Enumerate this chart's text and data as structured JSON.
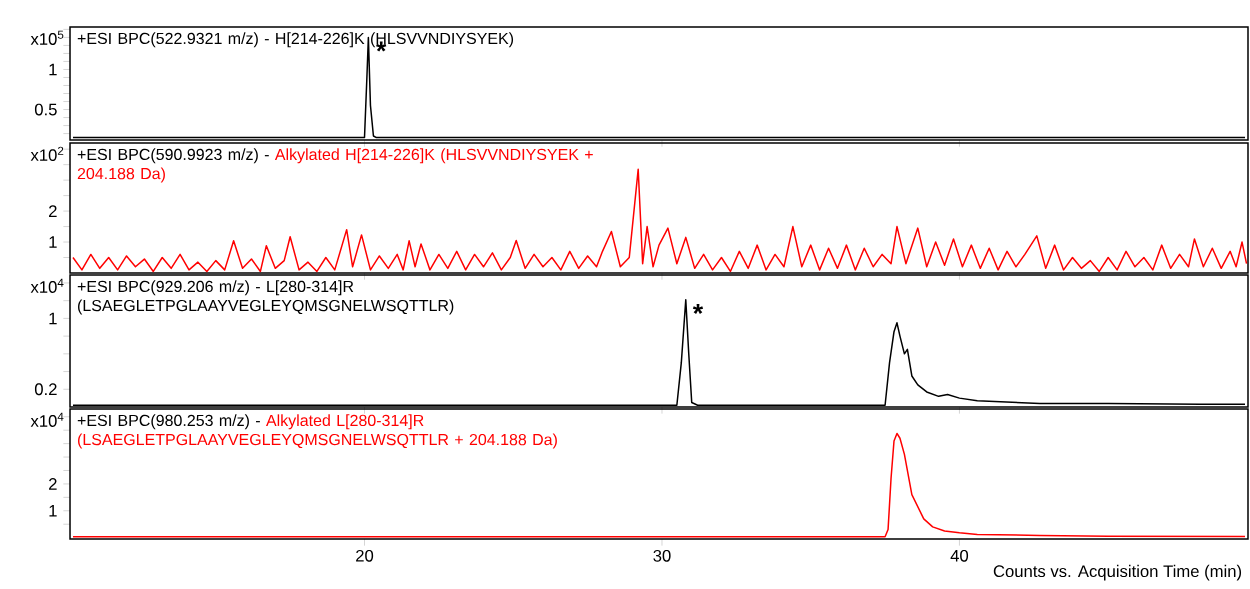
{
  "chart_data": [
    {
      "type": "line",
      "title": "+ESI BPC(522.9321 m/z) -",
      "subtitle": "H[214-226]K (HLSVVNDIYSYEK)",
      "ylabel": "x10$^{5}$",
      "xlim": [
        10.1,
        49.7
      ],
      "xticks": [
        20,
        30,
        40
      ],
      "ylim": [
        0.12,
        1.53
      ],
      "yticks": [
        {
          "value": 0.2,
          "label": null
        },
        {
          "value": 0.3,
          "label": null
        },
        {
          "value": 0.4,
          "label": null
        },
        0.5,
        {
          "value": 0.6,
          "label": null
        },
        {
          "value": 0.7,
          "label": null
        },
        {
          "value": 0.8,
          "label": null
        },
        {
          "value": 0.9,
          "label": null
        },
        1,
        {
          "value": 1.1,
          "label": null
        },
        {
          "value": 1.2,
          "label": null
        },
        {
          "value": 1.3,
          "label": null
        },
        {
          "value": 1.4,
          "label": null
        },
        {
          "value": 1.5,
          "label": null
        }
      ],
      "tick_labels": "y",
      "annotations": [
        {
          "text": "*",
          "x": 20.15,
          "y": 1.4
        }
      ],
      "series": [
        {
          "color": "#000000",
          "x": [
            10.2,
            20.0,
            20.08,
            20.13,
            20.2,
            20.3,
            20.4,
            49.6
          ],
          "values": [
            0.15,
            0.15,
            0.9,
            1.4,
            0.55,
            0.17,
            0.15,
            0.15
          ]
        }
      ]
    },
    {
      "type": "line",
      "title": "+ESI BPC(590.9923 m/z) -",
      "subtitle": "Alkylated H[214-226]K (HLSVVNDIYSYEK + 204.188 Da)",
      "ylabel": "x10$^{2}$",
      "xlim": [
        10.1,
        49.7
      ],
      "xticks": [
        20,
        30,
        40
      ],
      "ylim": [
        0,
        4.2
      ],
      "yticks": [
        {
          "value": 0.5,
          "label": null
        },
        1,
        {
          "value": 1.5,
          "label": null
        },
        2,
        {
          "value": 2.5,
          "label": null
        },
        {
          "value": 3,
          "label": null
        },
        {
          "value": 3.5,
          "label": null
        },
        {
          "value": 4,
          "label": null
        }
      ],
      "tick_labels": "y",
      "series": [
        {
          "color": "#ff0000",
          "x": [
            10.2,
            10.5,
            10.8,
            11.1,
            11.4,
            11.7,
            12.0,
            12.3,
            12.6,
            12.9,
            13.2,
            13.5,
            13.8,
            14.1,
            14.4,
            14.7,
            15.0,
            15.3,
            15.6,
            15.9,
            16.2,
            16.5,
            16.7,
            17.0,
            17.3,
            17.5,
            17.8,
            18.1,
            18.4,
            18.7,
            19.0,
            19.4,
            19.6,
            19.9,
            20.2,
            20.5,
            20.8,
            21.1,
            21.3,
            21.5,
            21.7,
            21.9,
            22.2,
            22.5,
            22.8,
            23.1,
            23.4,
            23.7,
            24.0,
            24.3,
            24.6,
            24.9,
            25.1,
            25.4,
            25.7,
            26.0,
            26.3,
            26.6,
            26.9,
            27.2,
            27.5,
            27.8,
            28.0,
            28.3,
            28.6,
            28.9,
            29.2,
            29.35,
            29.5,
            29.7,
            29.9,
            30.2,
            30.5,
            30.8,
            31.1,
            31.4,
            31.7,
            32.0,
            32.3,
            32.6,
            32.9,
            33.2,
            33.5,
            33.8,
            34.1,
            34.4,
            34.7,
            35.0,
            35.3,
            35.6,
            35.9,
            36.2,
            36.5,
            36.8,
            37.1,
            37.4,
            37.7,
            37.9,
            38.2,
            38.6,
            38.9,
            39.2,
            39.5,
            39.8,
            40.1,
            40.4,
            40.7,
            41.0,
            41.3,
            41.6,
            41.9,
            42.2,
            42.6,
            42.9,
            43.2,
            43.5,
            43.8,
            44.1,
            44.4,
            44.7,
            45.0,
            45.3,
            45.6,
            45.9,
            46.2,
            46.5,
            46.8,
            47.1,
            47.4,
            47.7,
            47.9,
            48.2,
            48.5,
            48.8,
            49.1,
            49.3,
            49.5,
            49.65
          ],
          "values": [
            0.5,
            0.1,
            0.6,
            0.15,
            0.5,
            0.1,
            0.55,
            0.2,
            0.45,
            0.05,
            0.5,
            0.15,
            0.6,
            0.1,
            0.35,
            0.05,
            0.4,
            0.1,
            1.04,
            0.15,
            0.45,
            0.05,
            0.88,
            0.15,
            0.4,
            1.17,
            0.1,
            0.35,
            0.05,
            0.5,
            0.1,
            1.4,
            0.2,
            1.23,
            0.1,
            0.55,
            0.15,
            0.6,
            0.1,
            1.04,
            0.2,
            0.94,
            0.1,
            0.6,
            0.15,
            0.7,
            0.1,
            0.6,
            0.2,
            0.65,
            0.1,
            0.5,
            1.05,
            0.15,
            0.6,
            0.2,
            0.5,
            0.1,
            0.7,
            0.15,
            0.55,
            0.2,
            0.7,
            1.34,
            0.2,
            0.5,
            3.35,
            0.3,
            1.5,
            0.2,
            0.9,
            1.45,
            0.3,
            1.15,
            0.15,
            0.6,
            0.1,
            0.5,
            0.05,
            0.7,
            0.15,
            0.9,
            0.1,
            0.6,
            0.2,
            1.5,
            0.2,
            0.9,
            0.1,
            0.8,
            0.15,
            0.9,
            0.1,
            0.8,
            0.2,
            0.6,
            0.3,
            1.5,
            0.3,
            1.45,
            0.2,
            1.0,
            0.25,
            1.1,
            0.2,
            0.9,
            0.15,
            0.8,
            0.1,
            0.7,
            0.2,
            0.6,
            1.2,
            0.15,
            0.9,
            0.1,
            0.5,
            0.15,
            0.4,
            0.05,
            0.5,
            0.1,
            0.7,
            0.2,
            0.5,
            0.1,
            0.9,
            0.15,
            0.6,
            0.2,
            1.1,
            0.2,
            0.8,
            0.15,
            0.7,
            0.2,
            1.0,
            0.3
          ]
        }
      ]
    },
    {
      "type": "line",
      "title": "+ESI BPC(929.206 m/z) -",
      "subtitle": "L[280-314]R (LSAEGLETPGLAAYVEGLEYQMSGNELWSQTTLR)",
      "ylabel": "x10$^{4}$",
      "xlim": [
        10.1,
        49.7
      ],
      "xticks": [
        20,
        30,
        40
      ],
      "ylim": [
        0,
        1.49
      ],
      "yticks": [
        0.2,
        {
          "value": 0.4,
          "label": null
        },
        {
          "value": 0.6,
          "label": null
        },
        {
          "value": 0.8,
          "label": null
        },
        1,
        {
          "value": 1.2,
          "label": null
        },
        {
          "value": 1.4,
          "label": null
        }
      ],
      "tick_labels": "y",
      "annotations": [
        {
          "text": "*",
          "x": 30.8,
          "y": 1.21
        }
      ],
      "series": [
        {
          "color": "#000000",
          "x": [
            10.2,
            30.5,
            30.65,
            30.8,
            30.9,
            31.0,
            31.2,
            37.5,
            37.65,
            37.8,
            37.9,
            38.0,
            38.15,
            38.25,
            38.4,
            38.6,
            38.9,
            39.3,
            39.6,
            40.0,
            40.6,
            42.7,
            45.0,
            48.1,
            49.6
          ],
          "values": [
            0.02,
            0.02,
            0.5,
            1.21,
            0.6,
            0.05,
            0.02,
            0.02,
            0.5,
            0.85,
            0.95,
            0.8,
            0.6,
            0.65,
            0.35,
            0.25,
            0.17,
            0.12,
            0.14,
            0.1,
            0.07,
            0.04,
            0.04,
            0.03,
            0.03
          ]
        }
      ]
    },
    {
      "type": "line",
      "title": "+ESI BPC(980.253 m/z) -",
      "subtitle": "Alkylated L[280-314]R (LSAEGLETPGLAAYVEGLEYQMSGNELWSQTTLR + 204.188 Da)",
      "ylabel": "x10$^{4}$",
      "xlabel": "Counts vs. Acquisition Time (min)",
      "xlim": [
        10.1,
        49.7
      ],
      "xticks": [
        20,
        30,
        40
      ],
      "ylim": [
        -0.05,
        4.79
      ],
      "yticks": [
        {
          "value": 0.5,
          "label": null
        },
        1,
        {
          "value": 1.5,
          "label": null
        },
        2,
        {
          "value": 2.5,
          "label": null
        },
        {
          "value": 3,
          "label": null
        },
        {
          "value": 3.5,
          "label": null
        },
        {
          "value": 4,
          "label": null
        },
        {
          "value": 4.5,
          "label": null
        }
      ],
      "series": [
        {
          "color": "#ff0000",
          "x": [
            10.2,
            37.5,
            37.6,
            37.7,
            37.8,
            37.9,
            38.0,
            38.15,
            38.4,
            38.8,
            39.1,
            39.5,
            40.0,
            40.6,
            42.7,
            45.0,
            49.6
          ],
          "values": [
            0.03,
            0.03,
            0.3,
            2.2,
            3.6,
            3.88,
            3.7,
            3.1,
            1.6,
            0.7,
            0.4,
            0.25,
            0.18,
            0.12,
            0.08,
            0.05,
            0.04
          ]
        }
      ]
    }
  ]
}
